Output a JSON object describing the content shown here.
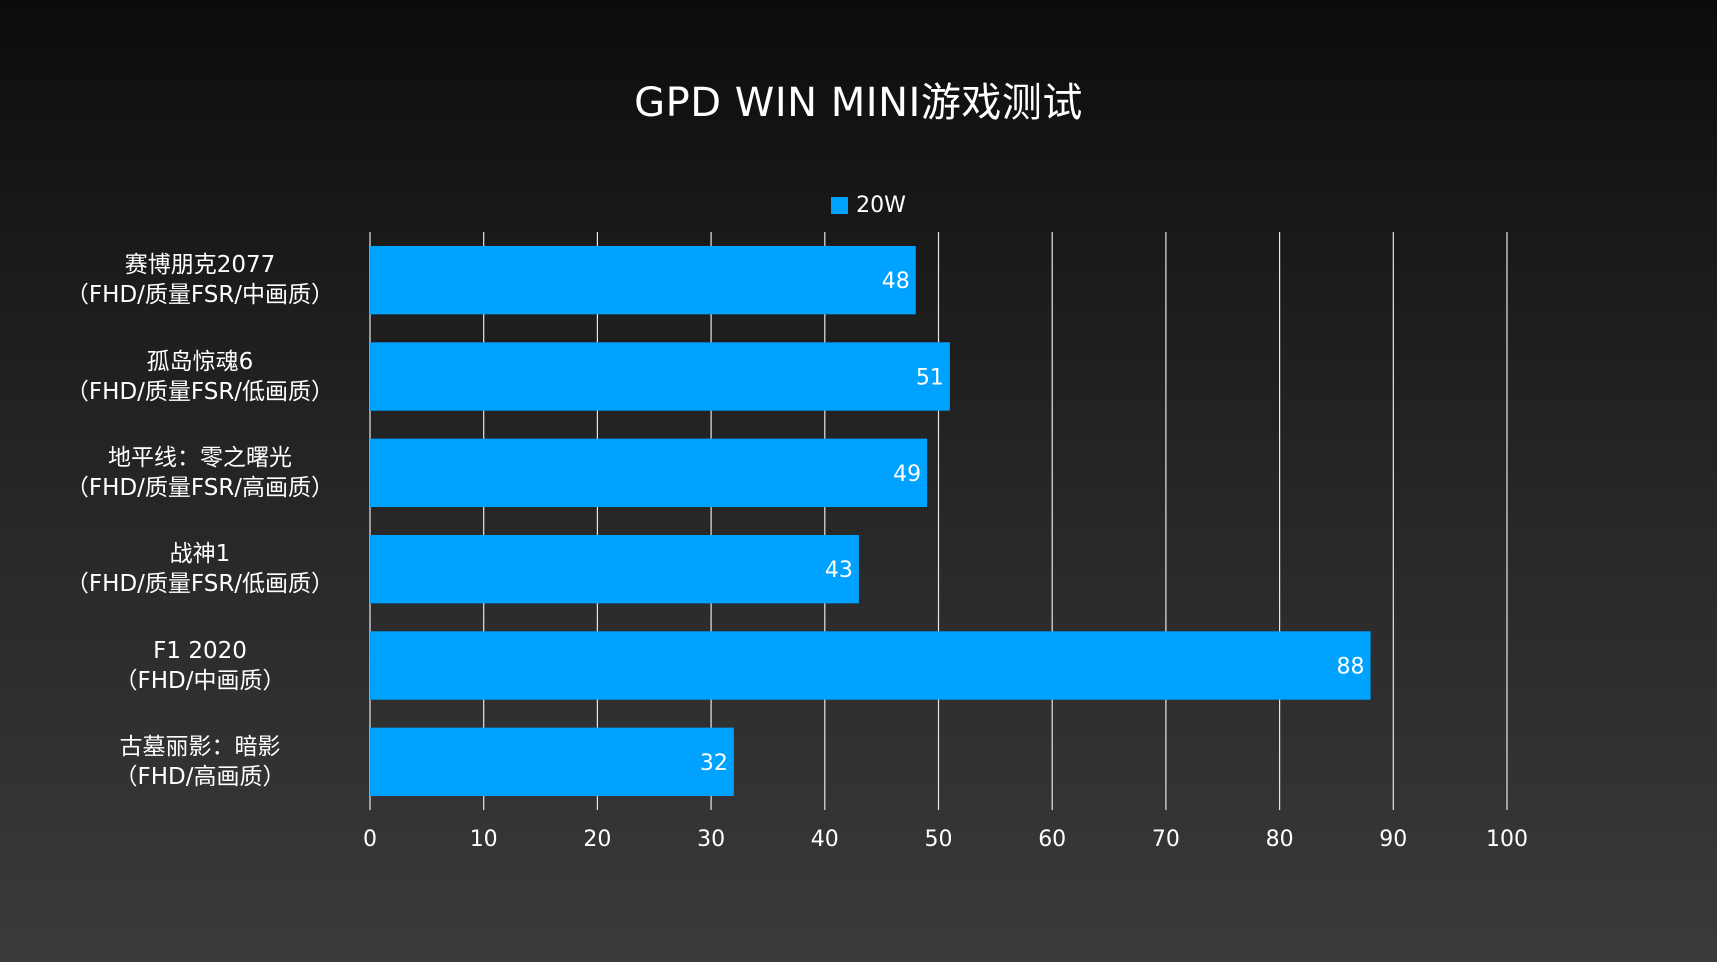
{
  "chart_data": {
    "type": "bar",
    "orientation": "horizontal",
    "title": "GPD WIN MINI游戏测试",
    "categories": [
      [
        "赛博朋克2077",
        "（FHD/质量FSR/中画质）"
      ],
      [
        "孤岛惊魂6",
        "（FHD/质量FSR/低画质）"
      ],
      [
        "地平线：零之曙光",
        "（FHD/质量FSR/高画质）"
      ],
      [
        "战神1",
        "（FHD/质量FSR/低画质）"
      ],
      [
        "F1 2020",
        "（FHD/中画质）"
      ],
      [
        "古墓丽影：暗影",
        "（FHD/高画质）"
      ]
    ],
    "series": [
      {
        "name": "20W",
        "color": "#00a2ff",
        "values": [
          48,
          51,
          49,
          43,
          88,
          32
        ]
      }
    ],
    "xlim": [
      0,
      100
    ],
    "xticks": [
      "0",
      "10",
      "20",
      "30",
      "40",
      "50",
      "60",
      "70",
      "80",
      "90",
      "100"
    ],
    "grid": true,
    "legend_position": "top",
    "data_labels": true
  }
}
